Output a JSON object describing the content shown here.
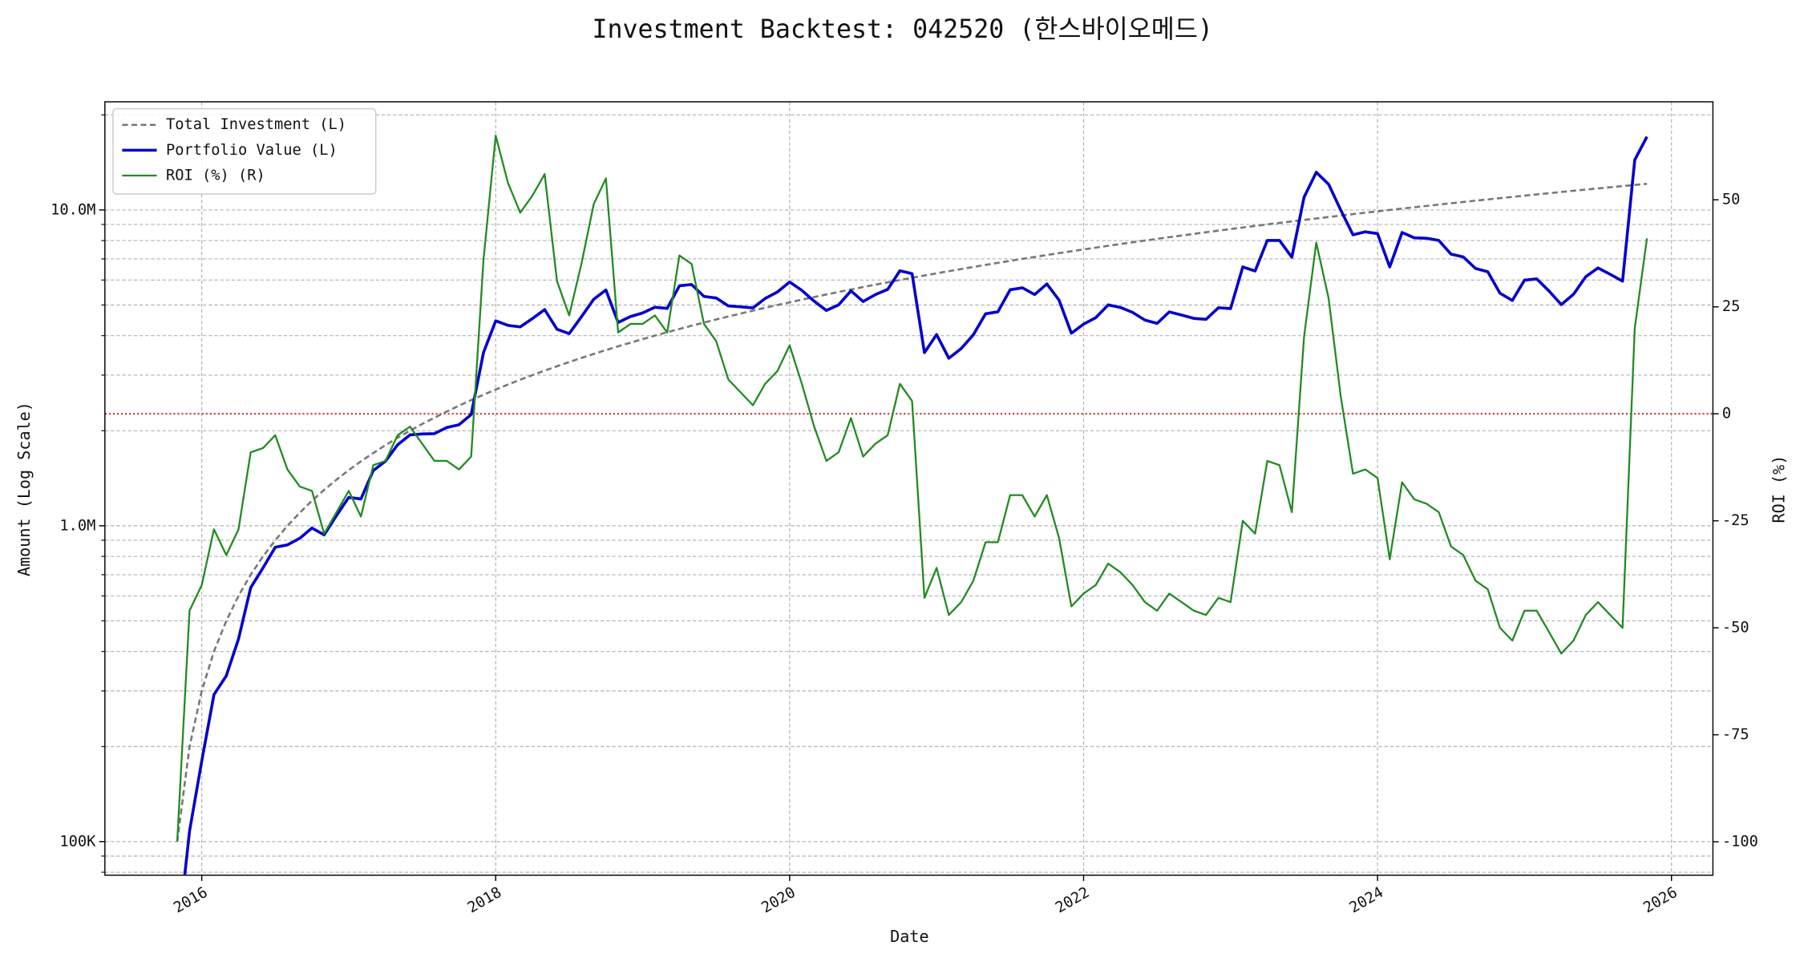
{
  "chart_data": {
    "type": "line",
    "title": "Investment Backtest: 042520 (한스바이오메드)",
    "xlabel": "Date",
    "ylabel": "Amount (Log Scale)",
    "y2label": "ROI (%)",
    "ylabel_color": "#0000cc",
    "y2label_color": "#228b22",
    "yscale": "log",
    "grid": true,
    "legend": "upper left",
    "xlim": [
      2015.341,
      2026.282
    ],
    "xticks": [
      2016,
      2018,
      2020,
      2022,
      2024,
      2026
    ],
    "ylim": [
      78300,
      22000000
    ],
    "yticks": [
      {
        "value": 100000,
        "label": "100K"
      },
      {
        "value": 1000000,
        "label": "1.0M"
      },
      {
        "value": 10000000,
        "label": "10.0M"
      }
    ],
    "y_minor_ticks": [
      80000,
      90000,
      200000,
      300000,
      400000,
      500000,
      600000,
      700000,
      800000,
      900000,
      2000000,
      3000000,
      4000000,
      5000000,
      6000000,
      7000000,
      8000000,
      9000000,
      20000000
    ],
    "y2lim": [
      -107.8,
      72.9
    ],
    "y2ticks": [
      -100,
      -75,
      -50,
      -25,
      0,
      25,
      50
    ],
    "hline": {
      "axis": "y2",
      "value": 0,
      "color": "#cc0000"
    },
    "x": [
      2015.833,
      2015.917,
      2016,
      2016.083,
      2016.167,
      2016.25,
      2016.333,
      2016.417,
      2016.5,
      2016.583,
      2016.667,
      2016.75,
      2016.833,
      2016.917,
      2017,
      2017.083,
      2017.167,
      2017.25,
      2017.333,
      2017.417,
      2017.5,
      2017.583,
      2017.667,
      2017.75,
      2017.833,
      2017.917,
      2018,
      2018.083,
      2018.167,
      2018.25,
      2018.333,
      2018.417,
      2018.5,
      2018.583,
      2018.667,
      2018.75,
      2018.833,
      2018.917,
      2019,
      2019.083,
      2019.167,
      2019.25,
      2019.333,
      2019.417,
      2019.5,
      2019.583,
      2019.667,
      2019.75,
      2019.833,
      2019.917,
      2020,
      2020.083,
      2020.167,
      2020.25,
      2020.333,
      2020.417,
      2020.5,
      2020.583,
      2020.667,
      2020.75,
      2020.833,
      2020.917,
      2021,
      2021.083,
      2021.167,
      2021.25,
      2021.333,
      2021.417,
      2021.5,
      2021.583,
      2021.667,
      2021.75,
      2021.833,
      2021.917,
      2022,
      2022.083,
      2022.167,
      2022.25,
      2022.333,
      2022.417,
      2022.5,
      2022.583,
      2022.667,
      2022.75,
      2022.833,
      2022.917,
      2023,
      2023.083,
      2023.167,
      2023.25,
      2023.333,
      2023.417,
      2023.5,
      2023.583,
      2023.667,
      2023.75,
      2023.833,
      2023.917,
      2024,
      2024.083,
      2024.167,
      2024.25,
      2024.333,
      2024.417,
      2024.5,
      2024.583,
      2024.667,
      2024.75,
      2024.833,
      2024.917,
      2025,
      2025.083,
      2025.167,
      2025.25,
      2025.333,
      2025.417,
      2025.5,
      2025.583,
      2025.667,
      2025.75,
      2025.833
    ],
    "series": [
      {
        "name": "Total Investment (L)",
        "color": "#777777",
        "dash": true,
        "width": 1.8,
        "axis": "y",
        "values": [
          100000,
          200000,
          300000,
          400000,
          500000,
          600000,
          700000,
          800000,
          900000,
          1000000,
          1100000,
          1200000,
          1300000,
          1400000,
          1500000,
          1600000,
          1700000,
          1800000,
          1900000,
          2000000,
          2100000,
          2200000,
          2300000,
          2400000,
          2500000,
          2600000,
          2700000,
          2800000,
          2900000,
          3000000,
          3100000,
          3200000,
          3300000,
          3400000,
          3500000,
          3600000,
          3700000,
          3800000,
          3900000,
          4000000,
          4100000,
          4200000,
          4300000,
          4400000,
          4500000,
          4600000,
          4700000,
          4800000,
          4900000,
          5000000,
          5100000,
          5200000,
          5300000,
          5400000,
          5500000,
          5600000,
          5700000,
          5800000,
          5900000,
          6000000,
          6100000,
          6200000,
          6300000,
          6400000,
          6500000,
          6600000,
          6700000,
          6800000,
          6900000,
          7000000,
          7100000,
          7200000,
          7300000,
          7400000,
          7500000,
          7600000,
          7700000,
          7800000,
          7900000,
          8000000,
          8100000,
          8200000,
          8300000,
          8400000,
          8500000,
          8600000,
          8700000,
          8800000,
          8900000,
          9000000,
          9100000,
          9200000,
          9300000,
          9400000,
          9500000,
          9600000,
          9700000,
          9800000,
          9900000,
          10000000,
          10100000,
          10200000,
          10300000,
          10400000,
          10500000,
          10600000,
          10700000,
          10800000,
          10900000,
          11000000,
          11100000,
          11200000,
          11300000,
          11400000,
          11500000,
          11600000,
          11700000,
          11800000,
          11900000,
          12000000,
          12100000
        ]
      },
      {
        "name": "Portfolio Value (L)",
        "color": "#0000cc",
        "width": 2.5,
        "axis": "y",
        "values": [
          0,
          108000,
          180000,
          292000,
          335000,
          438000,
          637000,
          736000,
          855000,
          870000,
          913000,
          984000,
          936000,
          1078000,
          1230000,
          1216000,
          1496000,
          1602000,
          1805000,
          1940000,
          1953000,
          1958000,
          2047000,
          2088000,
          2250000,
          3536000,
          4455000,
          4312000,
          4263000,
          4530000,
          4836000,
          4192000,
          4059000,
          4590000,
          5215000,
          5580000,
          4403000,
          4598000,
          4719000,
          4920000,
          4879000,
          5754000,
          5805000,
          5324000,
          5265000,
          4968000,
          4935000,
          4896000,
          5243000,
          5500000,
          5916000,
          5564000,
          5141000,
          4806000,
          5005000,
          5544000,
          5130000,
          5394000,
          5605000,
          6420000,
          6283000,
          3534000,
          4032000,
          3392000,
          3640000,
          4026000,
          4690000,
          4760000,
          5589000,
          5670000,
          5396000,
          5832000,
          5183000,
          4070000,
          4350000,
          4560000,
          5005000,
          4914000,
          4740000,
          4480000,
          4374000,
          4756000,
          4648000,
          4536000,
          4505000,
          4902000,
          4872000,
          6600000,
          6408000,
          8010000,
          8008000,
          7084000,
          10974000,
          13160000,
          12065000,
          9984000,
          8342000,
          8526000,
          8415000,
          6600000,
          8484000,
          8160000,
          8137000,
          8008000,
          7245000,
          7102000,
          6527000,
          6372000,
          5450000,
          5170000,
          5994000,
          6048000,
          5537000,
          5016000,
          5405000,
          6148000,
          6552000,
          6254000,
          5950000,
          14400000,
          17061000
        ]
      },
      {
        "name": "ROI (%) (R)",
        "color": "#228b22",
        "width": 1.6,
        "axis": "y2",
        "values": [
          -100,
          -46,
          -40,
          -27,
          -33,
          -27,
          -9,
          -8,
          -5,
          -13,
          -17,
          -18,
          -28,
          -23,
          -18,
          -24,
          -12,
          -11,
          -5,
          -3,
          -7,
          -11,
          -11,
          -13,
          -10,
          36,
          65,
          54,
          47,
          51,
          56,
          31,
          23,
          35,
          49,
          55,
          19,
          21,
          21,
          23,
          19,
          37,
          35,
          21,
          17,
          8,
          5,
          2,
          7,
          10,
          16,
          7,
          -3,
          -11,
          -9,
          -1,
          -10,
          -7,
          -5,
          7,
          3,
          -43,
          -36,
          -47,
          -44,
          -39,
          -30,
          -30,
          -19,
          -19,
          -24,
          -19,
          -29,
          -45,
          -42,
          -40,
          -35,
          -37,
          -40,
          -44,
          -46,
          -42,
          -44,
          -46,
          -47,
          -43,
          -44,
          -25,
          -28,
          -11,
          -12,
          -23,
          18,
          40,
          27,
          4,
          -14,
          -13,
          -15,
          -34,
          -16,
          -20,
          -21,
          -23,
          -31,
          -33,
          -39,
          -41,
          -50,
          -53,
          -46,
          -46,
          -51,
          -56,
          -53,
          -47,
          -44,
          -47,
          -50,
          20,
          41
        ]
      }
    ]
  }
}
